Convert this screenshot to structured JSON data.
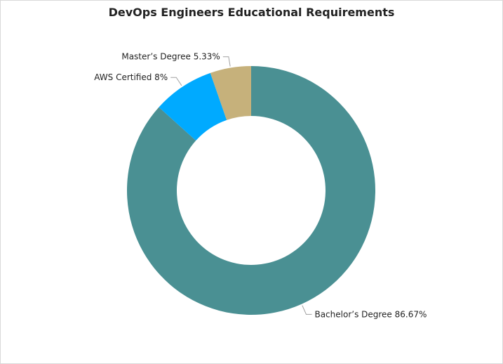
{
  "chart_data": {
    "type": "pie",
    "title": "DevOps Engineers Educational Requirements",
    "donut": true,
    "slices": [
      {
        "name": "Bachelor’s Degree",
        "value": 86.67,
        "label": "Bachelor’s Degree 86.67%",
        "color": "#4a9093"
      },
      {
        "name": "AWS Certified",
        "value": 8,
        "label": "AWS Certified 8%",
        "color": "#00aaff"
      },
      {
        "name": "Master’s Degree",
        "value": 5.33,
        "label": "Master’s Degree 5.33%",
        "color": "#c6b17b"
      }
    ],
    "legend": "none"
  }
}
